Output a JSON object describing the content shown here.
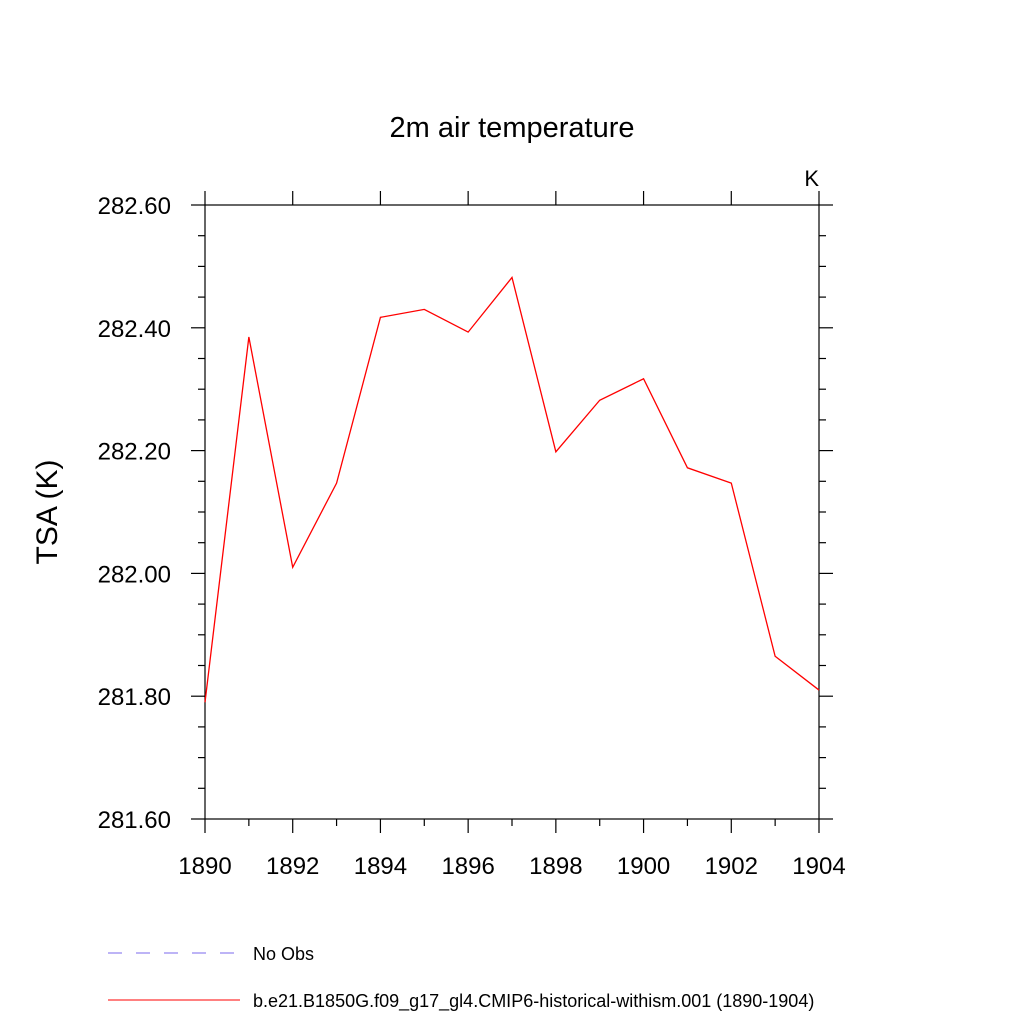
{
  "chart_data": {
    "type": "line",
    "title": "2m air temperature",
    "units_label": "K",
    "ylabel": "TSA  (K)",
    "xlabel": "",
    "xlim": [
      1890,
      1904
    ],
    "ylim": [
      281.6,
      282.6
    ],
    "x_ticks": [
      "1890",
      "1892",
      "1894",
      "1896",
      "1898",
      "1900",
      "1902",
      "1904"
    ],
    "y_ticks": [
      "281.60",
      "281.80",
      "282.00",
      "282.20",
      "282.40",
      "282.60"
    ],
    "grid": false,
    "legend_position": "bottom",
    "series": [
      {
        "name": "b.e21.B1850G.f09_g17_gl4.CMIP6-historical-withism.001 (1890-1904)",
        "color": "#ff0000",
        "style": "solid",
        "x": [
          1890,
          1891,
          1892,
          1893,
          1894,
          1895,
          1896,
          1897,
          1898,
          1899,
          1900,
          1901,
          1902,
          1903,
          1904
        ],
        "values": [
          281.79,
          282.385,
          282.01,
          282.147,
          282.417,
          282.43,
          282.393,
          282.482,
          282.198,
          282.282,
          282.317,
          282.172,
          282.147,
          281.865,
          281.81
        ]
      }
    ],
    "legend": [
      {
        "label": "No Obs",
        "color": "#7b68ee",
        "style": "dashed"
      },
      {
        "label": "b.e21.B1850G.f09_g17_gl4.CMIP6-historical-withism.001 (1890-1904)",
        "color": "#ff0000",
        "style": "solid"
      }
    ]
  }
}
